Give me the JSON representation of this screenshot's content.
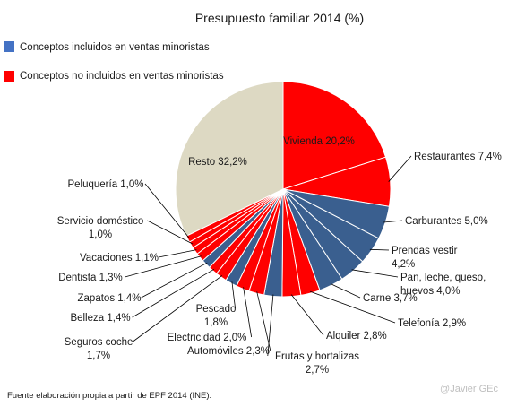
{
  "chart_data": {
    "type": "pie",
    "title": "Presupuesto familiar 2014 (%)",
    "legend": {
      "placement": "top-left",
      "entries": [
        {
          "label": "Conceptos incluidos en ventas minoristas",
          "color": "#4472c4"
        },
        {
          "label": "Conceptos no incluidos en ventas minoristas",
          "color": "#ff0000"
        }
      ]
    },
    "slices": [
      {
        "name": "Vivienda",
        "value": 20.2,
        "label": "Vivienda 20,2%",
        "color": "#ff0000"
      },
      {
        "name": "Restaurantes",
        "value": 7.4,
        "label": "Restaurantes 7,4%",
        "color": "#ff0000"
      },
      {
        "name": "Carburantes",
        "value": 5.0,
        "label": "Carburantes 5,0%",
        "color": "#3a5f8f"
      },
      {
        "name": "Prendas vestir",
        "value": 4.2,
        "label": "Prendas vestir\n4,2%",
        "color": "#3a5f8f"
      },
      {
        "name": "Pan, leche, queso, huevos",
        "value": 4.0,
        "label": "Pan, leche, queso,\nhuevos 4,0%",
        "color": "#3a5f8f"
      },
      {
        "name": "Carne",
        "value": 3.7,
        "label": "Carne 3,7%",
        "color": "#3a5f8f"
      },
      {
        "name": "Telefonía",
        "value": 2.9,
        "label": "Telefonía 2,9%",
        "color": "#ff0000"
      },
      {
        "name": "Alquiler",
        "value": 2.8,
        "label": "Alquiler 2,8%",
        "color": "#ff0000"
      },
      {
        "name": "Frutas y hortalizas",
        "value": 2.7,
        "label": "Frutas y hortalizas\n2,7%",
        "color": "#3a5f8f"
      },
      {
        "name": "Automóviles",
        "value": 2.3,
        "label": "Automóviles 2,3%",
        "color": "#ff0000"
      },
      {
        "name": "Electricidad",
        "value": 2.0,
        "label": "Electricidad 2,0%",
        "color": "#ff0000"
      },
      {
        "name": "Pescado",
        "value": 1.8,
        "label": "Pescado\n1,8%",
        "color": "#3a5f8f"
      },
      {
        "name": "Seguros coche",
        "value": 1.7,
        "label": "Seguros coche\n1,7%",
        "color": "#ff0000"
      },
      {
        "name": "Belleza",
        "value": 1.4,
        "label": "Belleza 1,4%",
        "color": "#ff0000"
      },
      {
        "name": "Zapatos",
        "value": 1.4,
        "label": "Zapatos 1,4%",
        "color": "#3a5f8f"
      },
      {
        "name": "Dentista",
        "value": 1.3,
        "label": "Dentista 1,3%",
        "color": "#ff0000"
      },
      {
        "name": "Vacaciones",
        "value": 1.1,
        "label": "Vacaciones 1,1%",
        "color": "#ff0000"
      },
      {
        "name": "Servicio doméstico",
        "value": 1.0,
        "label": "Servicio doméstico\n1,0%",
        "color": "#ff0000"
      },
      {
        "name": "Peluquería",
        "value": 1.0,
        "label": "Peluquería 1,0%",
        "color": "#ff0000"
      },
      {
        "name": "Resto",
        "value": 32.2,
        "label": "Resto 32,2%",
        "color": "#ddd9c3"
      }
    ]
  },
  "footer": {
    "source": "Fuente elaboración propia a partir de EPF 2014 (INE).",
    "credit": "@Javier GEc"
  }
}
